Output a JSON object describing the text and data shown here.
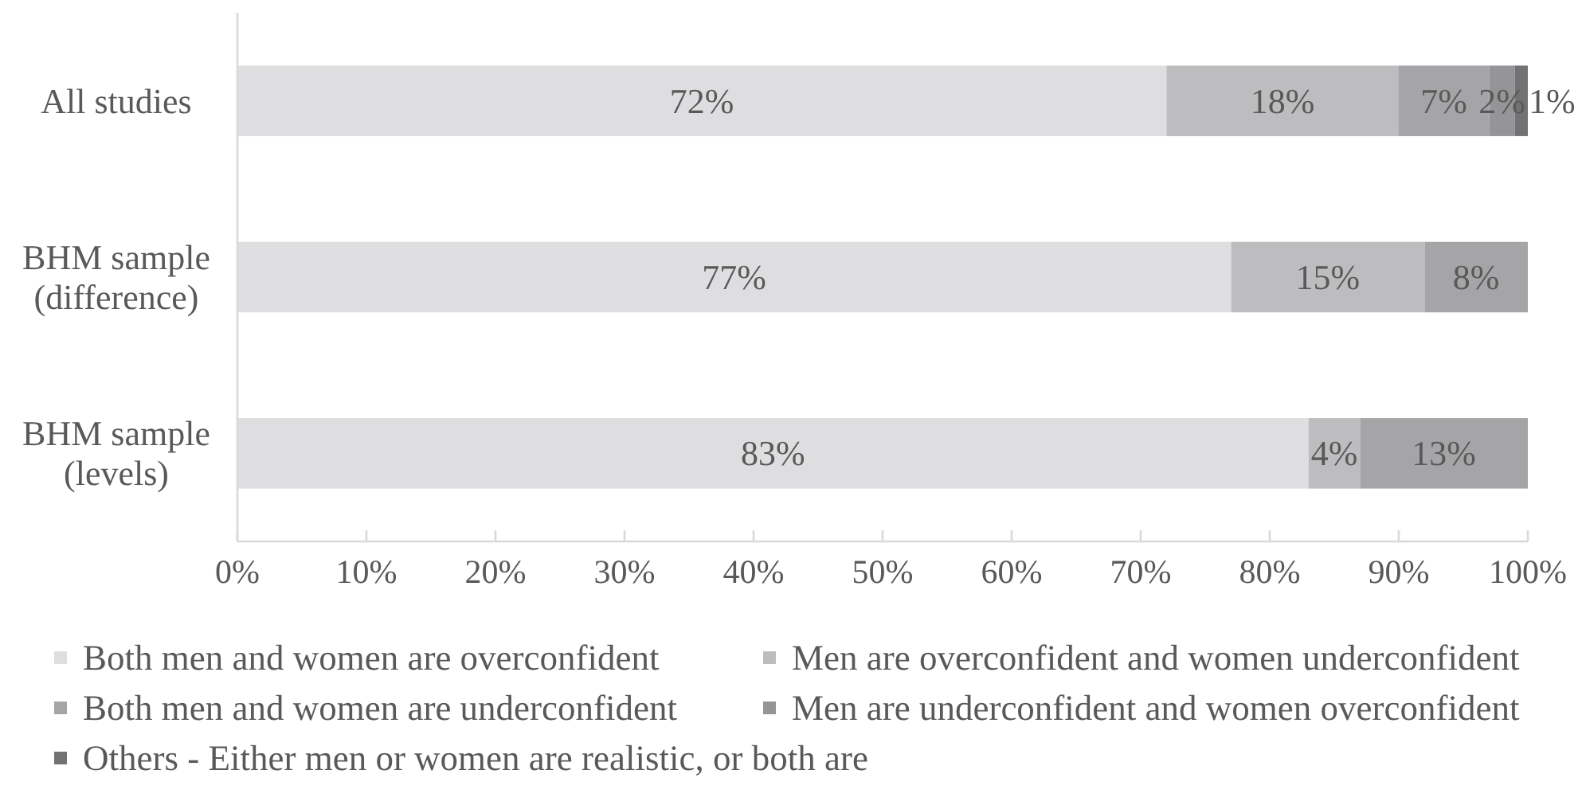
{
  "chart_data": {
    "type": "bar",
    "orientation": "horizontal",
    "stacked": true,
    "categories": [
      "All studies",
      "BHM sample\n(difference)",
      "BHM sample\n(levels)"
    ],
    "series": [
      {
        "name": "Both men and women are overconfident",
        "color": "#dedee0",
        "values": [
          72,
          77,
          83
        ],
        "value_labels": [
          "72%",
          "77%",
          "83%"
        ]
      },
      {
        "name": "Men are overconfident and women underconfident",
        "color": "#bdbdc0",
        "values": [
          18,
          15,
          4
        ],
        "value_labels": [
          "18%",
          "15%",
          "4%"
        ]
      },
      {
        "name": "Both men and women are underconfident",
        "color": "#a5a5a8",
        "values": [
          7,
          8,
          13
        ],
        "value_labels": [
          "7%",
          "8%",
          "13%"
        ]
      },
      {
        "name": "Men are underconfident and women overconfident",
        "color": "#959598",
        "values": [
          2,
          null,
          null
        ],
        "value_labels": [
          "2%",
          null,
          null
        ]
      },
      {
        "name": "Others - Either men or women are realistic, or both are",
        "color": "#727275",
        "values": [
          1,
          null,
          null
        ],
        "value_labels": [
          "1%",
          null,
          null
        ]
      }
    ],
    "xlim": [
      0,
      100
    ],
    "xticks": [
      {
        "value": 0,
        "label": "0%"
      },
      {
        "value": 10,
        "label": "10%"
      },
      {
        "value": 20,
        "label": "20%"
      },
      {
        "value": 30,
        "label": "30%"
      },
      {
        "value": 40,
        "label": "40%"
      },
      {
        "value": 50,
        "label": "50%"
      },
      {
        "value": 60,
        "label": "60%"
      },
      {
        "value": 70,
        "label": "70%"
      },
      {
        "value": 80,
        "label": "80%"
      },
      {
        "value": 90,
        "label": "90%"
      },
      {
        "value": 100,
        "label": "100%"
      }
    ],
    "legend": "bottom"
  }
}
